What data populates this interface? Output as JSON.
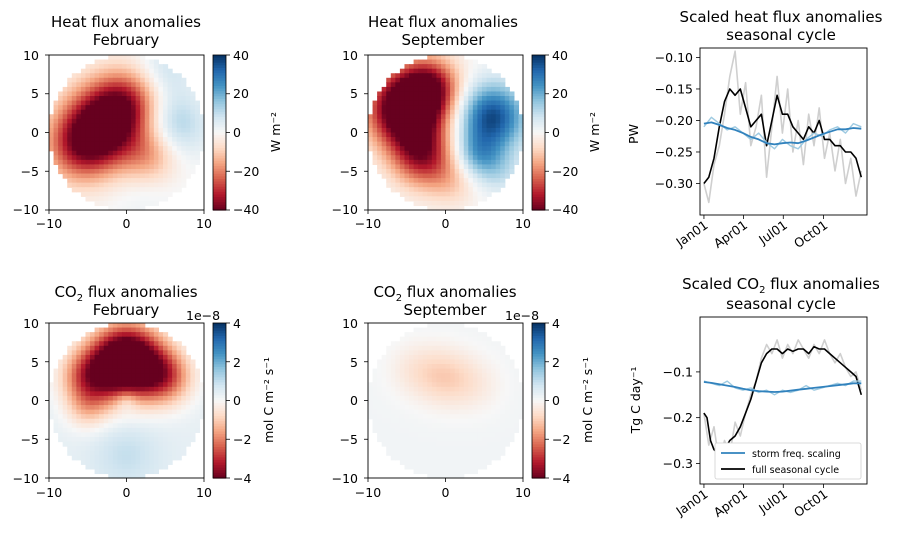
{
  "chart_data": [
    {
      "type": "heatmap",
      "title_line1": "Heat flux anomalies",
      "title_line2": "February",
      "xlim": [
        -10,
        10
      ],
      "ylim": [
        -10,
        10
      ],
      "xticks": [
        "−10",
        "0",
        "10"
      ],
      "yticks": [
        "10",
        "5",
        "0",
        "−5",
        "−10"
      ],
      "colorbar": {
        "label": "W m⁻²",
        "range": [
          -40,
          40
        ],
        "ticks": [
          "40",
          "20",
          "0",
          "−20",
          "−40"
        ],
        "colormap": "RdBu",
        "exponent": ""
      },
      "field": {
        "base": 0,
        "blobs": [
          {
            "x": -3,
            "y": 1,
            "s": 3.6,
            "a": -40
          },
          {
            "x": 0,
            "y": 4,
            "s": 3.0,
            "a": -22
          },
          {
            "x": -6,
            "y": -2,
            "s": 3.2,
            "a": -24
          },
          {
            "x": 3,
            "y": -3,
            "s": 2.6,
            "a": -16
          },
          {
            "x": 6,
            "y": 1,
            "s": 3.0,
            "a": 14
          },
          {
            "x": 5,
            "y": 8,
            "s": 2.5,
            "a": 8
          },
          {
            "x": 2,
            "y": -7,
            "s": 3.0,
            "a": 3
          }
        ]
      }
    },
    {
      "type": "heatmap",
      "title_line1": "Heat flux anomalies",
      "title_line2": "September",
      "xlim": [
        -10,
        10
      ],
      "ylim": [
        -10,
        10
      ],
      "xticks": [
        "−10",
        "0",
        "10"
      ],
      "yticks": [
        "10",
        "5",
        "0",
        "−5",
        "−10"
      ],
      "colorbar": {
        "label": "W m⁻²",
        "range": [
          -40,
          40
        ],
        "ticks": [
          "40",
          "20",
          "0",
          "−20",
          "−40"
        ],
        "colormap": "RdBu",
        "exponent": ""
      },
      "field": {
        "base": 0,
        "blobs": [
          {
            "x": -5,
            "y": 3,
            "s": 3.4,
            "a": -55
          },
          {
            "x": -2,
            "y": 6,
            "s": 2.6,
            "a": -28
          },
          {
            "x": -3,
            "y": -3,
            "s": 2.8,
            "a": -30
          },
          {
            "x": 6,
            "y": 2,
            "s": 3.0,
            "a": 36
          },
          {
            "x": 4,
            "y": -3,
            "s": 2.2,
            "a": 18
          },
          {
            "x": 7,
            "y": -5,
            "s": 2.2,
            "a": 8
          },
          {
            "x": 1,
            "y": -6,
            "s": 2.4,
            "a": -10
          }
        ]
      }
    },
    {
      "type": "heatmap",
      "title_prefix": "CO",
      "title_sub": "2",
      "title_suffix": " flux anomalies",
      "title_line2": "February",
      "xlim": [
        -10,
        10
      ],
      "ylim": [
        -10,
        10
      ],
      "xticks": [
        "−10",
        "0",
        "10"
      ],
      "yticks": [
        "10",
        "5",
        "0",
        "−5",
        "−10"
      ],
      "colorbar": {
        "label": "mol C m⁻² s⁻¹",
        "range": [
          -4,
          4
        ],
        "ticks": [
          "4",
          "2",
          "0",
          "−2",
          "−4"
        ],
        "colormap": "RdBu",
        "exponent": "1e−8"
      },
      "field": {
        "base": 0.35,
        "blobs": [
          {
            "x": 0,
            "y": 5,
            "s": 3.2,
            "a": -6.5
          },
          {
            "x": -5,
            "y": 3,
            "s": 2.5,
            "a": -2.5
          },
          {
            "x": 5,
            "y": 3,
            "s": 2.5,
            "a": -2.5
          },
          {
            "x": -5,
            "y": -1,
            "s": 2.0,
            "a": -1.2
          },
          {
            "x": 0,
            "y": 0,
            "s": 1.0,
            "a": 0.8
          },
          {
            "x": 0,
            "y": -7,
            "s": 3.0,
            "a": 0.6
          }
        ]
      }
    },
    {
      "type": "heatmap",
      "title_prefix": "CO",
      "title_sub": "2",
      "title_suffix": " flux anomalies",
      "title_line2": "September",
      "xlim": [
        -10,
        10
      ],
      "ylim": [
        -10,
        10
      ],
      "xticks": [
        "−10",
        "0",
        "10"
      ],
      "yticks": [
        "10",
        "5",
        "0",
        "−5",
        "−10"
      ],
      "colorbar": {
        "label": "mol C m⁻² s⁻¹",
        "range": [
          -4,
          4
        ],
        "ticks": [
          "4",
          "2",
          "0",
          "−2",
          "−4"
        ],
        "colormap": "RdBu",
        "exponent": "1e−8"
      },
      "field": {
        "base": 0.12,
        "blobs": [
          {
            "x": 0,
            "y": 3,
            "s": 2.6,
            "a": -0.95
          },
          {
            "x": -4,
            "y": 4,
            "s": 2.5,
            "a": -0.5
          },
          {
            "x": 4,
            "y": 2,
            "s": 2.5,
            "a": -0.4
          }
        ]
      }
    },
    {
      "type": "line",
      "title_line1": "Scaled heat flux anomalies",
      "title_line2": "seasonal cycle",
      "ylabel": "PW",
      "ylim": [
        -0.35,
        -0.085
      ],
      "yticks": [
        -0.1,
        -0.15,
        -0.2,
        -0.25,
        -0.3
      ],
      "ytick_labels": [
        "−0.10",
        "−0.15",
        "−0.20",
        "−0.25",
        "−0.30"
      ],
      "xticks": [
        "Jan01",
        "Apr01",
        "Jul01",
        "Oct01"
      ],
      "xtick_days": [
        1,
        91,
        182,
        274
      ],
      "xlim": [
        -8,
        373
      ],
      "series": [
        {
          "role": "full-raw",
          "color": "#cfcfcf",
          "x": [
            1,
            12,
            24,
            36,
            48,
            60,
            72,
            84,
            96,
            108,
            120,
            132,
            144,
            156,
            168,
            180,
            192,
            204,
            216,
            228,
            240,
            252,
            264,
            276,
            288,
            300,
            312,
            324,
            336,
            348,
            360
          ],
          "values": [
            -0.3,
            -0.33,
            -0.27,
            -0.24,
            -0.19,
            -0.13,
            -0.09,
            -0.19,
            -0.14,
            -0.24,
            -0.21,
            -0.16,
            -0.29,
            -0.21,
            -0.13,
            -0.22,
            -0.15,
            -0.25,
            -0.2,
            -0.27,
            -0.19,
            -0.24,
            -0.18,
            -0.26,
            -0.22,
            -0.28,
            -0.23,
            -0.3,
            -0.26,
            -0.32,
            -0.28
          ]
        },
        {
          "role": "full-smooth",
          "color": "#000000",
          "x": [
            1,
            12,
            24,
            36,
            48,
            60,
            72,
            84,
            96,
            108,
            120,
            132,
            144,
            156,
            168,
            180,
            192,
            204,
            216,
            228,
            240,
            252,
            264,
            276,
            288,
            300,
            312,
            324,
            336,
            348,
            360
          ],
          "values": [
            -0.3,
            -0.29,
            -0.26,
            -0.21,
            -0.17,
            -0.15,
            -0.16,
            -0.15,
            -0.18,
            -0.21,
            -0.2,
            -0.19,
            -0.24,
            -0.2,
            -0.16,
            -0.19,
            -0.19,
            -0.21,
            -0.22,
            -0.23,
            -0.21,
            -0.22,
            -0.2,
            -0.23,
            -0.23,
            -0.24,
            -0.24,
            -0.25,
            -0.25,
            -0.26,
            -0.29
          ]
        },
        {
          "role": "scaled-raw",
          "color": "#9ecae1",
          "x": [
            1,
            18,
            36,
            54,
            72,
            90,
            108,
            126,
            144,
            162,
            180,
            198,
            216,
            234,
            252,
            270,
            288,
            306,
            324,
            342,
            360
          ],
          "values": [
            -0.21,
            -0.195,
            -0.205,
            -0.215,
            -0.21,
            -0.22,
            -0.23,
            -0.22,
            -0.235,
            -0.245,
            -0.23,
            -0.24,
            -0.245,
            -0.23,
            -0.22,
            -0.225,
            -0.215,
            -0.21,
            -0.22,
            -0.205,
            -0.21
          ]
        },
        {
          "role": "scaled-smooth",
          "color": "#3182bd",
          "x": [
            1,
            18,
            36,
            54,
            72,
            90,
            108,
            126,
            144,
            162,
            180,
            198,
            216,
            234,
            252,
            270,
            288,
            306,
            324,
            342,
            360
          ],
          "values": [
            -0.205,
            -0.203,
            -0.207,
            -0.212,
            -0.215,
            -0.22,
            -0.226,
            -0.23,
            -0.236,
            -0.238,
            -0.236,
            -0.235,
            -0.236,
            -0.232,
            -0.227,
            -0.222,
            -0.218,
            -0.214,
            -0.214,
            -0.212,
            -0.213
          ]
        }
      ]
    },
    {
      "type": "line",
      "title_prefix": "Scaled CO",
      "title_sub": "2",
      "title_suffix": " flux anomalies",
      "title_line2": "seasonal cycle",
      "ylabel": "Tg C day⁻¹",
      "ylim": [
        -0.345,
        0.02
      ],
      "yticks": [
        -0.1,
        -0.2,
        -0.3
      ],
      "ytick_labels": [
        "−0.1",
        "−0.2",
        "−0.3"
      ],
      "xticks": [
        "Jan01",
        "Apr01",
        "Jul01",
        "Oct01"
      ],
      "xtick_days": [
        1,
        91,
        182,
        274
      ],
      "xlim": [
        -8,
        373
      ],
      "legend": {
        "position": "lower-right",
        "entries": [
          {
            "label": "storm freq. scaling",
            "color": "#3182bd"
          },
          {
            "label": "full seasonal cycle",
            "color": "#000000"
          }
        ]
      },
      "series": [
        {
          "role": "full-raw",
          "color": "#cfcfcf",
          "x": [
            1,
            12,
            24,
            36,
            48,
            60,
            72,
            84,
            96,
            108,
            120,
            132,
            144,
            156,
            168,
            180,
            192,
            204,
            216,
            228,
            240,
            252,
            264,
            276,
            288,
            300,
            312,
            324,
            336,
            348,
            360
          ],
          "values": [
            -0.19,
            -0.26,
            -0.22,
            -0.3,
            -0.25,
            -0.28,
            -0.21,
            -0.24,
            -0.19,
            -0.15,
            -0.12,
            -0.07,
            -0.04,
            -0.06,
            -0.03,
            -0.07,
            -0.04,
            -0.06,
            -0.03,
            -0.05,
            -0.07,
            -0.04,
            -0.06,
            -0.03,
            -0.06,
            -0.08,
            -0.06,
            -0.09,
            -0.11,
            -0.1,
            -0.14
          ]
        },
        {
          "role": "full-smooth",
          "color": "#000000",
          "x": [
            1,
            8,
            16,
            24,
            36,
            48,
            60,
            72,
            84,
            96,
            108,
            120,
            132,
            144,
            156,
            168,
            180,
            192,
            204,
            216,
            228,
            240,
            252,
            264,
            276,
            288,
            300,
            312,
            324,
            336,
            348,
            360
          ],
          "values": [
            -0.19,
            -0.2,
            -0.25,
            -0.27,
            -0.28,
            -0.27,
            -0.25,
            -0.24,
            -0.22,
            -0.19,
            -0.16,
            -0.12,
            -0.08,
            -0.06,
            -0.05,
            -0.05,
            -0.06,
            -0.05,
            -0.055,
            -0.05,
            -0.05,
            -0.06,
            -0.045,
            -0.05,
            -0.05,
            -0.06,
            -0.07,
            -0.08,
            -0.09,
            -0.1,
            -0.11,
            -0.15
          ]
        },
        {
          "role": "scaled-raw",
          "color": "#9ecae1",
          "x": [
            1,
            18,
            36,
            54,
            72,
            90,
            108,
            126,
            144,
            162,
            180,
            198,
            216,
            234,
            252,
            270,
            288,
            306,
            324,
            342,
            360
          ],
          "values": [
            -0.12,
            -0.125,
            -0.13,
            -0.12,
            -0.135,
            -0.14,
            -0.135,
            -0.145,
            -0.14,
            -0.15,
            -0.14,
            -0.145,
            -0.14,
            -0.13,
            -0.14,
            -0.135,
            -0.13,
            -0.125,
            -0.13,
            -0.12,
            -0.12
          ]
        },
        {
          "role": "scaled-smooth",
          "color": "#3182bd",
          "x": [
            1,
            18,
            36,
            54,
            72,
            90,
            108,
            126,
            144,
            162,
            180,
            198,
            216,
            234,
            252,
            270,
            288,
            306,
            324,
            342,
            360
          ],
          "values": [
            -0.122,
            -0.124,
            -0.127,
            -0.13,
            -0.133,
            -0.137,
            -0.14,
            -0.142,
            -0.143,
            -0.144,
            -0.143,
            -0.141,
            -0.139,
            -0.137,
            -0.135,
            -0.133,
            -0.131,
            -0.129,
            -0.127,
            -0.125,
            -0.125
          ]
        }
      ]
    }
  ]
}
